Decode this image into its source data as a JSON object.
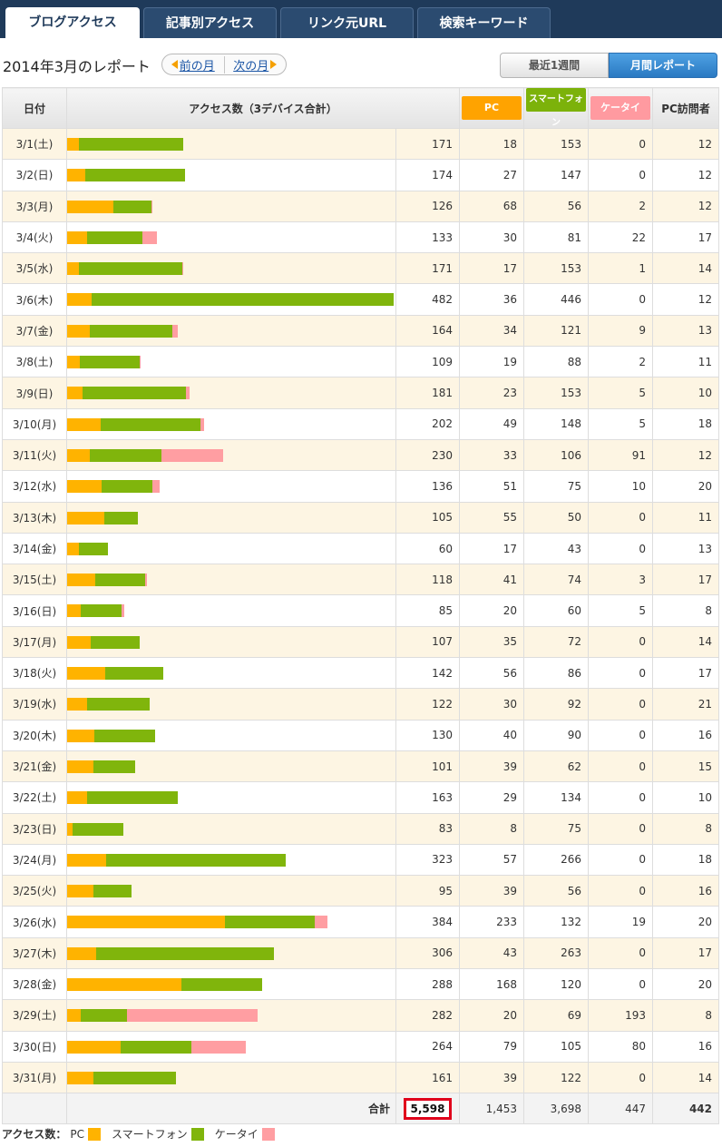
{
  "tabs": [
    {
      "label": "ブログアクセス",
      "active": true
    },
    {
      "label": "記事別アクセス",
      "active": false
    },
    {
      "label": "リンク元URL",
      "active": false
    },
    {
      "label": "検索キーワード",
      "active": false
    }
  ],
  "title": "2014年3月のレポート",
  "nav": {
    "prev": "前の月",
    "next": "次の月"
  },
  "period": {
    "week": "最近1週間",
    "month": "月間レポート"
  },
  "headers": {
    "date": "日付",
    "access": "アクセス数（3デバイス合計）",
    "pc": "PC",
    "sp": "スマートフォン",
    "kt": "ケータイ",
    "visitors": "PC訪問者"
  },
  "colors": {
    "pc": "#ffb300",
    "sp": "#80b50c",
    "kt": "#ff9ea2"
  },
  "bar_max": 482,
  "rows": [
    {
      "date": "3/1(土)",
      "total": "171",
      "pc": "18",
      "sp": "153",
      "kt": "0",
      "visitors": "12"
    },
    {
      "date": "3/2(日)",
      "total": "174",
      "pc": "27",
      "sp": "147",
      "kt": "0",
      "visitors": "12"
    },
    {
      "date": "3/3(月)",
      "total": "126",
      "pc": "68",
      "sp": "56",
      "kt": "2",
      "visitors": "12"
    },
    {
      "date": "3/4(火)",
      "total": "133",
      "pc": "30",
      "sp": "81",
      "kt": "22",
      "visitors": "17"
    },
    {
      "date": "3/5(水)",
      "total": "171",
      "pc": "17",
      "sp": "153",
      "kt": "1",
      "visitors": "14"
    },
    {
      "date": "3/6(木)",
      "total": "482",
      "pc": "36",
      "sp": "446",
      "kt": "0",
      "visitors": "12"
    },
    {
      "date": "3/7(金)",
      "total": "164",
      "pc": "34",
      "sp": "121",
      "kt": "9",
      "visitors": "13"
    },
    {
      "date": "3/8(土)",
      "total": "109",
      "pc": "19",
      "sp": "88",
      "kt": "2",
      "visitors": "11"
    },
    {
      "date": "3/9(日)",
      "total": "181",
      "pc": "23",
      "sp": "153",
      "kt": "5",
      "visitors": "10"
    },
    {
      "date": "3/10(月)",
      "total": "202",
      "pc": "49",
      "sp": "148",
      "kt": "5",
      "visitors": "18"
    },
    {
      "date": "3/11(火)",
      "total": "230",
      "pc": "33",
      "sp": "106",
      "kt": "91",
      "visitors": "12"
    },
    {
      "date": "3/12(水)",
      "total": "136",
      "pc": "51",
      "sp": "75",
      "kt": "10",
      "visitors": "20"
    },
    {
      "date": "3/13(木)",
      "total": "105",
      "pc": "55",
      "sp": "50",
      "kt": "0",
      "visitors": "11"
    },
    {
      "date": "3/14(金)",
      "total": "60",
      "pc": "17",
      "sp": "43",
      "kt": "0",
      "visitors": "13"
    },
    {
      "date": "3/15(土)",
      "total": "118",
      "pc": "41",
      "sp": "74",
      "kt": "3",
      "visitors": "17"
    },
    {
      "date": "3/16(日)",
      "total": "85",
      "pc": "20",
      "sp": "60",
      "kt": "5",
      "visitors": "8"
    },
    {
      "date": "3/17(月)",
      "total": "107",
      "pc": "35",
      "sp": "72",
      "kt": "0",
      "visitors": "14"
    },
    {
      "date": "3/18(火)",
      "total": "142",
      "pc": "56",
      "sp": "86",
      "kt": "0",
      "visitors": "17"
    },
    {
      "date": "3/19(水)",
      "total": "122",
      "pc": "30",
      "sp": "92",
      "kt": "0",
      "visitors": "21"
    },
    {
      "date": "3/20(木)",
      "total": "130",
      "pc": "40",
      "sp": "90",
      "kt": "0",
      "visitors": "16"
    },
    {
      "date": "3/21(金)",
      "total": "101",
      "pc": "39",
      "sp": "62",
      "kt": "0",
      "visitors": "15"
    },
    {
      "date": "3/22(土)",
      "total": "163",
      "pc": "29",
      "sp": "134",
      "kt": "0",
      "visitors": "10"
    },
    {
      "date": "3/23(日)",
      "total": "83",
      "pc": "8",
      "sp": "75",
      "kt": "0",
      "visitors": "8"
    },
    {
      "date": "3/24(月)",
      "total": "323",
      "pc": "57",
      "sp": "266",
      "kt": "0",
      "visitors": "18"
    },
    {
      "date": "3/25(火)",
      "total": "95",
      "pc": "39",
      "sp": "56",
      "kt": "0",
      "visitors": "16"
    },
    {
      "date": "3/26(水)",
      "total": "384",
      "pc": "233",
      "sp": "132",
      "kt": "19",
      "visitors": "20"
    },
    {
      "date": "3/27(木)",
      "total": "306",
      "pc": "43",
      "sp": "263",
      "kt": "0",
      "visitors": "17"
    },
    {
      "date": "3/28(金)",
      "total": "288",
      "pc": "168",
      "sp": "120",
      "kt": "0",
      "visitors": "20"
    },
    {
      "date": "3/29(土)",
      "total": "282",
      "pc": "20",
      "sp": "69",
      "kt": "193",
      "visitors": "8"
    },
    {
      "date": "3/30(日)",
      "total": "264",
      "pc": "79",
      "sp": "105",
      "kt": "80",
      "visitors": "16"
    },
    {
      "date": "3/31(月)",
      "total": "161",
      "pc": "39",
      "sp": "122",
      "kt": "0",
      "visitors": "14"
    }
  ],
  "totals": {
    "label": "合計",
    "total": "5,598",
    "pc": "1,453",
    "sp": "3,698",
    "kt": "447",
    "visitors": "442"
  },
  "legend": {
    "label": "アクセス数：",
    "pc": "PC",
    "sp": "スマートフォン",
    "kt": "ケータイ"
  }
}
